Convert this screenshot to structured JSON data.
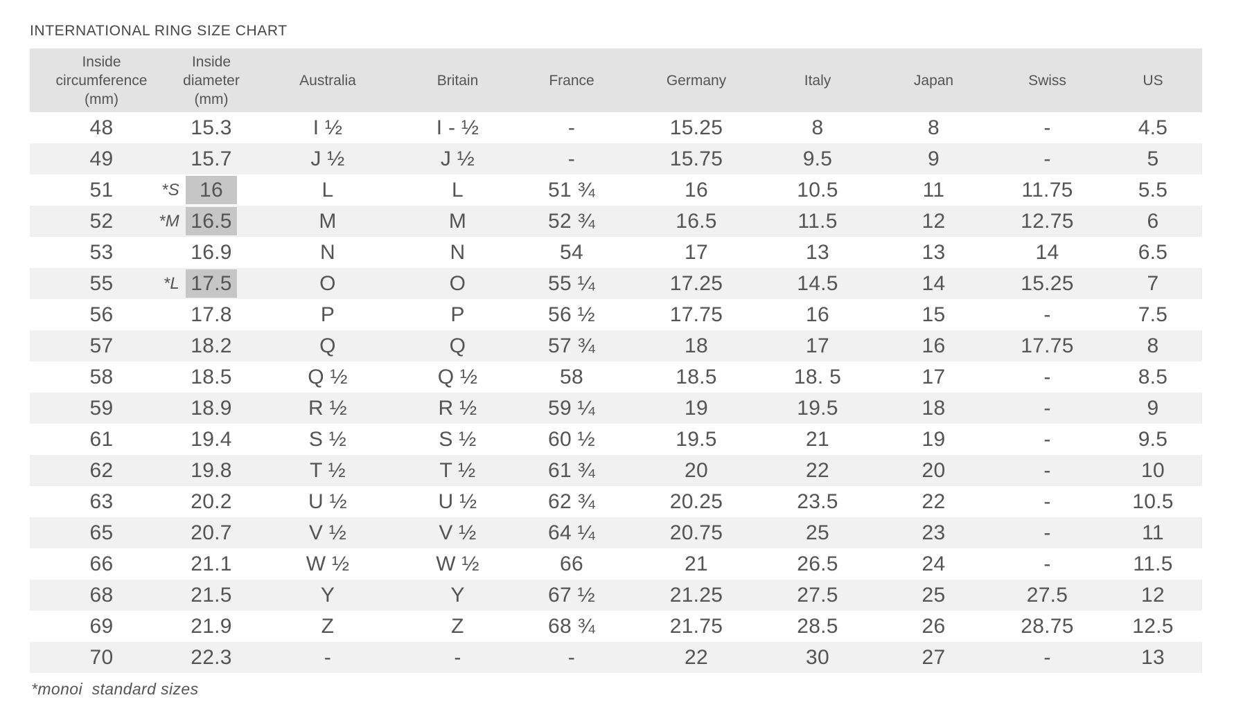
{
  "colors": {
    "header_bg": "#e3e3e3",
    "stripe_bg": "#f1f1f1",
    "highlight_bg": "#c6c6c6",
    "text": "#545456"
  },
  "chart_data": {
    "type": "table",
    "title": "INTERNATIONAL RING SIZE CHART",
    "footnote": "*monoi  standard sizes",
    "highlight_note_markers": [
      "*S",
      "*M",
      "*L"
    ],
    "column_headers": [
      [
        "Inside",
        "circumference",
        "(mm)"
      ],
      [
        "Inside",
        "diameter",
        "(mm)"
      ],
      [
        "Australia"
      ],
      [
        "Britain"
      ],
      [
        "France"
      ],
      [
        "Germany"
      ],
      [
        "Italy"
      ],
      [
        "Japan"
      ],
      [
        "Swiss"
      ],
      [
        "US"
      ]
    ],
    "rows": [
      {
        "marker": "",
        "highlight": false,
        "cells": [
          "48",
          "15.3",
          "I ½",
          "I - ½",
          "-",
          "15.25",
          "8",
          "8",
          "-",
          "4.5"
        ]
      },
      {
        "marker": "",
        "highlight": false,
        "cells": [
          "49",
          "15.7",
          "J ½",
          "J ½",
          "-",
          "15.75",
          "9.5",
          "9",
          "-",
          "5"
        ]
      },
      {
        "marker": "*S",
        "highlight": true,
        "cells": [
          "51",
          "16",
          "L",
          "L",
          "51 ¾",
          "16",
          "10.5",
          "11",
          "11.75",
          "5.5"
        ]
      },
      {
        "marker": "*M",
        "highlight": true,
        "cells": [
          "52",
          "16.5",
          "M",
          "M",
          "52 ¾",
          "16.5",
          "11.5",
          "12",
          "12.75",
          "6"
        ]
      },
      {
        "marker": "",
        "highlight": false,
        "cells": [
          "53",
          "16.9",
          "N",
          "N",
          "54",
          "17",
          "13",
          "13",
          "14",
          "6.5"
        ]
      },
      {
        "marker": "*L",
        "highlight": true,
        "cells": [
          "55",
          "17.5",
          "O",
          "O",
          "55 ¼",
          "17.25",
          "14.5",
          "14",
          "15.25",
          "7"
        ]
      },
      {
        "marker": "",
        "highlight": false,
        "cells": [
          "56",
          "17.8",
          "P",
          "P",
          "56 ½",
          "17.75",
          "16",
          "15",
          "-",
          "7.5"
        ]
      },
      {
        "marker": "",
        "highlight": false,
        "cells": [
          "57",
          "18.2",
          "Q",
          "Q",
          "57 ¾",
          "18",
          "17",
          "16",
          "17.75",
          "8"
        ]
      },
      {
        "marker": "",
        "highlight": false,
        "cells": [
          "58",
          "18.5",
          "Q ½",
          "Q ½",
          "58",
          "18.5",
          "18. 5",
          "17",
          "-",
          "8.5"
        ]
      },
      {
        "marker": "",
        "highlight": false,
        "cells": [
          "59",
          "18.9",
          "R ½",
          "R ½",
          "59 ¼",
          "19",
          "19.5",
          "18",
          "-",
          "9"
        ]
      },
      {
        "marker": "",
        "highlight": false,
        "cells": [
          "61",
          "19.4",
          "S ½",
          "S ½",
          "60 ½",
          "19.5",
          "21",
          "19",
          "-",
          "9.5"
        ]
      },
      {
        "marker": "",
        "highlight": false,
        "cells": [
          "62",
          "19.8",
          "T ½",
          "T ½",
          "61 ¾",
          "20",
          "22",
          "20",
          "-",
          "10"
        ]
      },
      {
        "marker": "",
        "highlight": false,
        "cells": [
          "63",
          "20.2",
          "U ½",
          "U ½",
          "62 ¾",
          "20.25",
          "23.5",
          "22",
          "-",
          "10.5"
        ]
      },
      {
        "marker": "",
        "highlight": false,
        "cells": [
          "65",
          "20.7",
          "V ½",
          "V ½",
          "64 ¼",
          "20.75",
          "25",
          "23",
          "-",
          "11"
        ]
      },
      {
        "marker": "",
        "highlight": false,
        "cells": [
          "66",
          "21.1",
          "W ½",
          "W ½",
          "66",
          "21",
          "26.5",
          "24",
          "-",
          "11.5"
        ]
      },
      {
        "marker": "",
        "highlight": false,
        "cells": [
          "68",
          "21.5",
          "Y",
          "Y",
          "67 ½",
          "21.25",
          "27.5",
          "25",
          "27.5",
          "12"
        ]
      },
      {
        "marker": "",
        "highlight": false,
        "cells": [
          "69",
          "21.9",
          "Z",
          "Z",
          "68 ¾",
          "21.75",
          "28.5",
          "26",
          "28.75",
          "12.5"
        ]
      },
      {
        "marker": "",
        "highlight": false,
        "cells": [
          "70",
          "22.3",
          "-",
          "-",
          "-",
          "22",
          "30",
          "27",
          "-",
          "13"
        ]
      }
    ]
  }
}
